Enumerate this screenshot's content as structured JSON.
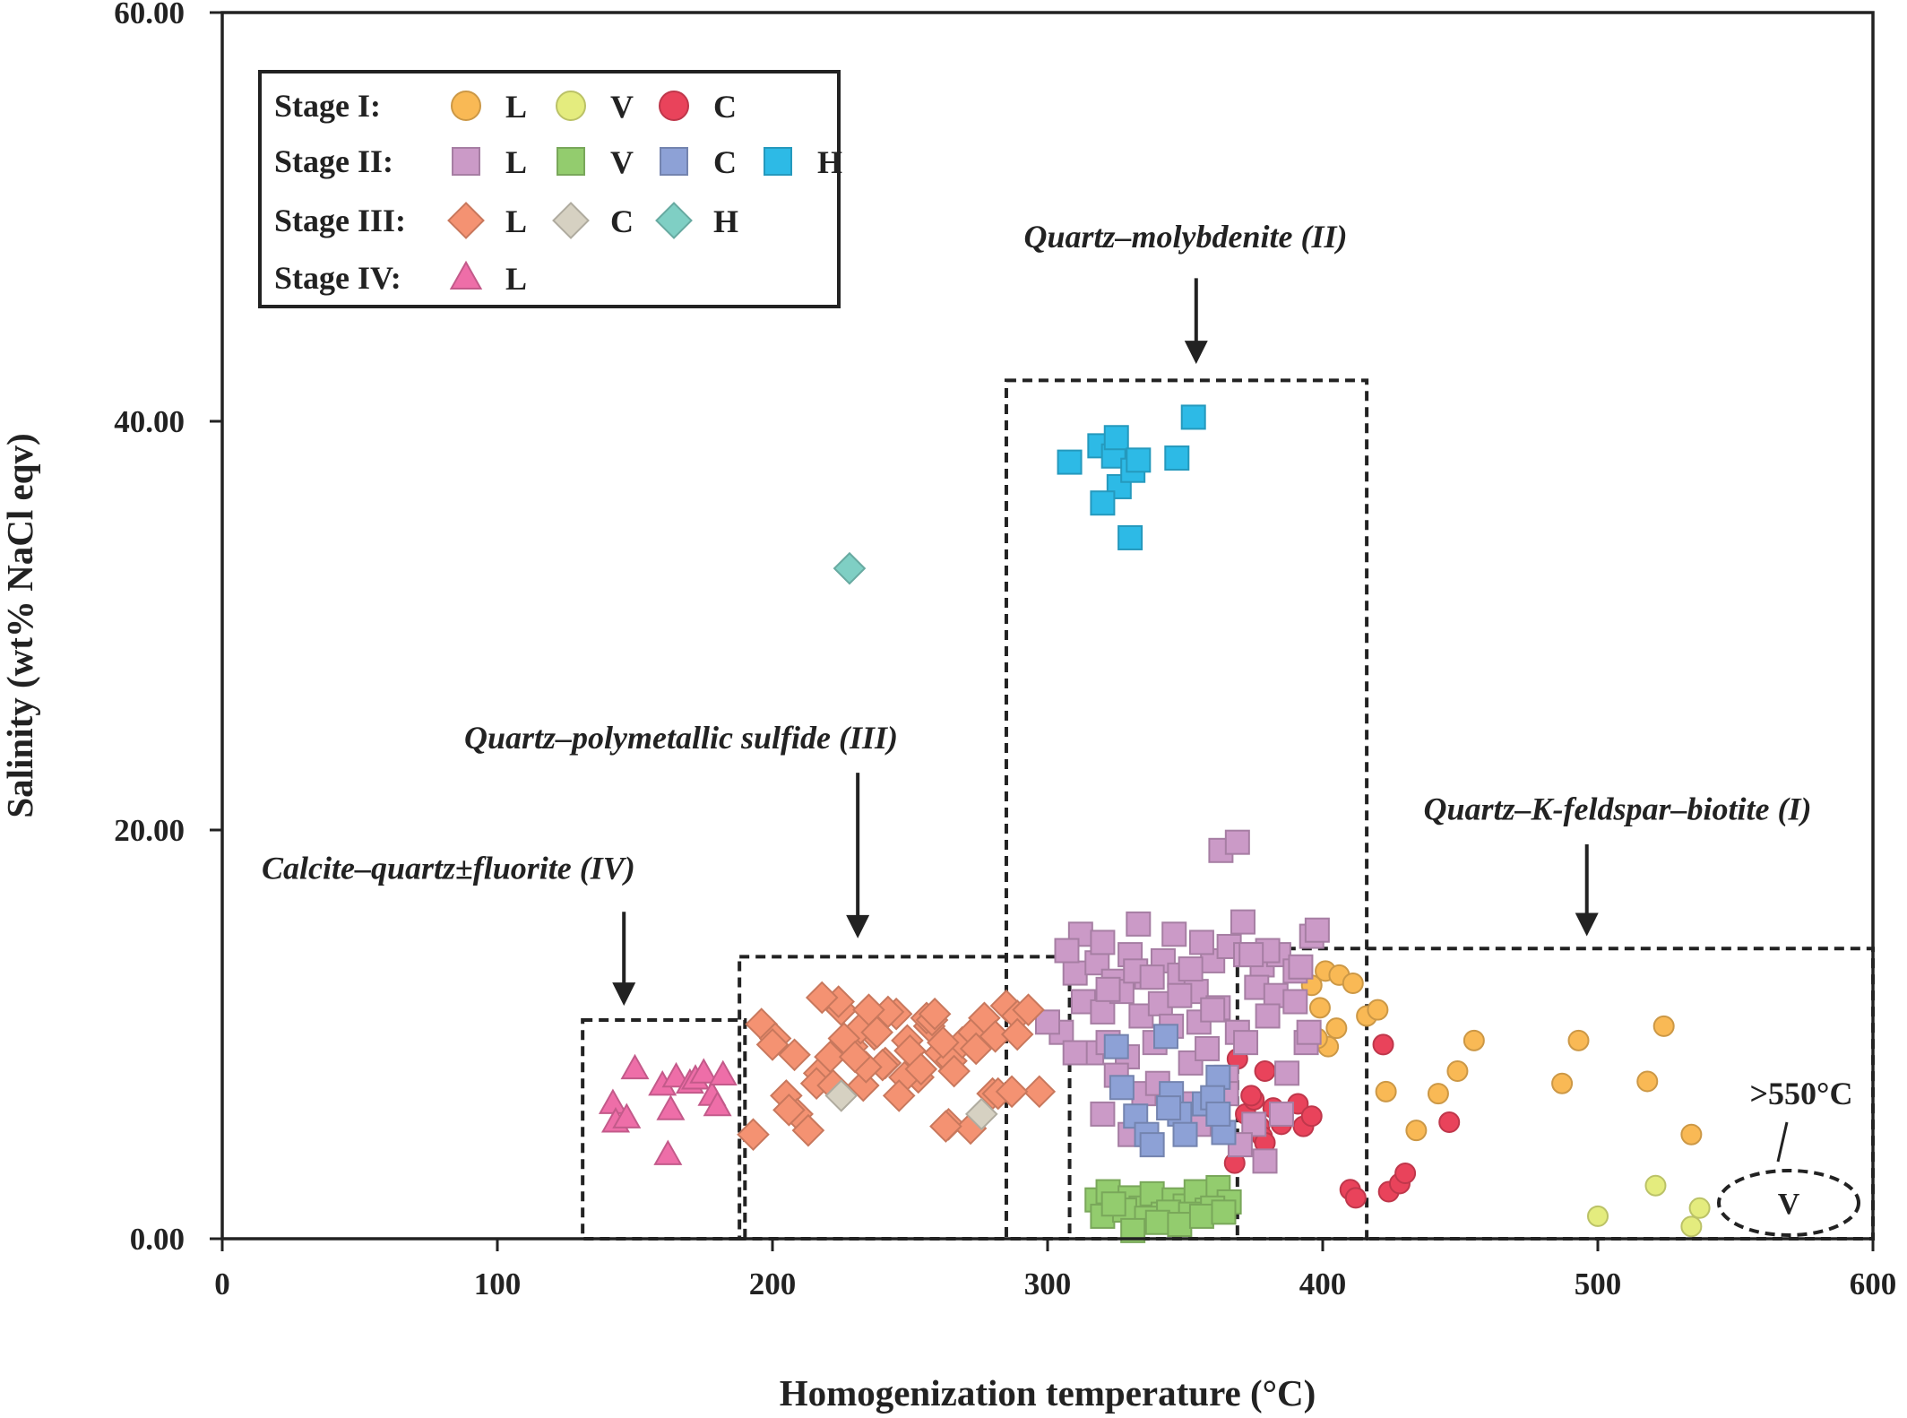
{
  "chart_data": {
    "type": "scatter",
    "xlabel": "Homogenization temperature (°C)",
    "ylabel": "Salinity (wt% NaCl eqv)",
    "xlim": [
      0,
      600
    ],
    "ylim": [
      0,
      60
    ],
    "x_ticks": [
      0,
      100,
      200,
      300,
      400,
      500,
      600
    ],
    "y_ticks": [
      0,
      20,
      40,
      60
    ],
    "x_tick_labels": [
      "0",
      "100",
      "200",
      "300",
      "400",
      "500",
      "600"
    ],
    "y_tick_labels": [
      "0.00",
      "20.00",
      "40.00",
      "60.00"
    ],
    "grid": false,
    "legend": {
      "placement": "top-left",
      "rows": [
        {
          "stage": "Stage I:",
          "items": [
            {
              "marker": "circle",
              "color": "#F9B955",
              "label": "L",
              "series": "s1L"
            },
            {
              "marker": "circle",
              "color": "#E4EC7E",
              "label": "V",
              "series": "s1V"
            },
            {
              "marker": "circle",
              "color": "#E9435B",
              "label": "C",
              "series": "s1C"
            }
          ]
        },
        {
          "stage": "Stage II:",
          "items": [
            {
              "marker": "square",
              "color": "#CB9AC7",
              "label": "L",
              "series": "s2L"
            },
            {
              "marker": "square",
              "color": "#93CC6E",
              "label": "V",
              "series": "s2V"
            },
            {
              "marker": "square",
              "color": "#8DA1D6",
              "label": "C",
              "series": "s2C"
            },
            {
              "marker": "square",
              "color": "#2DBAE6",
              "label": "H",
              "series": "s2H"
            }
          ]
        },
        {
          "stage": "Stage III:",
          "items": [
            {
              "marker": "diamond",
              "color": "#F49272",
              "label": "L",
              "series": "s3L"
            },
            {
              "marker": "diamond",
              "color": "#D6D1C2",
              "label": "C",
              "series": "s3C"
            },
            {
              "marker": "diamond",
              "color": "#7FCFC4",
              "label": "H",
              "series": "s3H"
            }
          ]
        },
        {
          "stage": "Stage IV:",
          "items": [
            {
              "marker": "triangle",
              "color": "#EE6EA8",
              "label": "L",
              "series": "s4L"
            }
          ]
        }
      ]
    },
    "regions": [
      {
        "label": "Calcite–quartz±fluorite (IV)",
        "x": [
          131,
          190
        ],
        "y": [
          0,
          10.7
        ]
      },
      {
        "label": "Quartz–polymetallic sulfide (III)",
        "x": [
          188,
          308
        ],
        "y": [
          0,
          13.8
        ]
      },
      {
        "label": "Quartz–molybdenite (II)",
        "x": [
          285,
          416
        ],
        "y": [
          0,
          42
        ]
      },
      {
        "label": "Quartz–K-feldspar–biotite (I)",
        "x": [
          369,
          600
        ],
        "y": [
          0,
          14.2
        ]
      }
    ],
    "annotations": [
      {
        "label": "Calcite–quartz±fluorite (IV)",
        "text_at": [
          180,
          17.6
        ],
        "arrow_from": [
          146,
          16
        ],
        "arrow_to": [
          146,
          11.4
        ]
      },
      {
        "label": "Quartz–polymetallic sulfide (III)",
        "text_at": [
          190,
          24
        ],
        "arrow_from": [
          231,
          22.8
        ],
        "arrow_to": [
          231,
          14.7
        ]
      },
      {
        "label": "Quartz–molybdenite (II)",
        "text_at": [
          354,
          48.5
        ],
        "arrow_from": [
          354,
          47
        ],
        "arrow_to": [
          354,
          42.8
        ]
      },
      {
        "label": "Quartz–K-feldspar–biotite (I)",
        "text_at": [
          496,
          20.5
        ],
        "arrow_from": [
          496,
          19.3
        ],
        "arrow_to": [
          496,
          14.8
        ]
      }
    ],
    "callout": {
      "label": ">550°C",
      "ellipse_label": "V",
      "center": [
        570,
        1.8
      ]
    },
    "series": [
      {
        "name": "Stage I L",
        "id": "s1L",
        "marker": "circle",
        "color": "#F9B955",
        "x": [
          396,
          401,
          406,
          411,
          416,
          420,
          399,
          402,
          405,
          398,
          423,
          434,
          442,
          449,
          455,
          487,
          493,
          518,
          524,
          534
        ],
        "y": [
          12.4,
          13.1,
          12.9,
          12.5,
          10.9,
          11.2,
          11.3,
          9.4,
          10.3,
          9.8,
          7.2,
          5.3,
          7.1,
          8.2,
          9.7,
          7.6,
          9.7,
          7.7,
          10.4,
          5.1
        ]
      },
      {
        "name": "Stage I V",
        "id": "s1V",
        "marker": "circle",
        "color": "#E4EC7E",
        "x": [
          500,
          521,
          534,
          537
        ],
        "y": [
          1.1,
          2.6,
          0.6,
          1.5
        ]
      },
      {
        "name": "Stage I C",
        "id": "s1C",
        "marker": "circle",
        "color": "#E9435B",
        "x": [
          372,
          375,
          377,
          379,
          382,
          385,
          368,
          374,
          378,
          391,
          393,
          396,
          369,
          379,
          422,
          410,
          412,
          424,
          428,
          430,
          446
        ],
        "y": [
          6.1,
          6.8,
          5.5,
          8.2,
          6.4,
          5.6,
          3.7,
          7.0,
          5.0,
          6.6,
          5.5,
          6.0,
          8.8,
          4.7,
          9.5,
          2.4,
          2.0,
          2.3,
          2.7,
          3.2,
          5.7
        ]
      },
      {
        "name": "Stage II L",
        "id": "s2L",
        "marker": "square",
        "color": "#CB9AC7",
        "x": [
          310,
          318,
          324,
          330,
          336,
          342,
          348,
          354,
          360,
          366,
          372,
          378,
          384,
          390,
          396,
          313,
          320,
          327,
          334,
          341,
          348,
          355,
          362,
          369,
          376,
          383,
          390,
          305,
          316,
          322,
          329,
          339,
          345,
          352,
          358,
          365,
          372,
          380,
          387,
          394,
          300,
          310,
          325,
          335,
          350,
          365,
          375,
          385,
          395,
          320,
          330,
          340,
          355,
          370,
          312,
          333,
          356,
          363,
          369,
          307,
          320,
          332,
          346,
          371,
          380,
          392,
          398,
          322,
          338,
          352,
          360,
          374,
          379
        ],
        "y": [
          13.0,
          13.5,
          12.6,
          13.9,
          12.8,
          13.6,
          12.9,
          12.1,
          13.6,
          14.3,
          13.9,
          13.4,
          13.9,
          13.1,
          14.8,
          11.6,
          11.1,
          12.1,
          10.9,
          11.5,
          11.9,
          10.6,
          11.3,
          10.1,
          12.3,
          11.9,
          11.6,
          10.1,
          9.1,
          9.6,
          8.9,
          9.6,
          10.4,
          8.6,
          9.3,
          7.9,
          9.6,
          10.9,
          8.1,
          9.6,
          10.6,
          9.1,
          8.0,
          7.1,
          6.6,
          7.1,
          5.6,
          6.1,
          10.1,
          6.1,
          5.1,
          7.6,
          5.6,
          4.6,
          14.9,
          15.4,
          14.5,
          19.0,
          19.4,
          14.1,
          14.5,
          13.1,
          14.9,
          15.5,
          14.1,
          13.3,
          15.1,
          12.2,
          12.8,
          13.2,
          11.2,
          13.9,
          3.8
        ]
      },
      {
        "name": "Stage II V",
        "id": "s2V",
        "marker": "square",
        "color": "#93CC6E",
        "x": [
          318,
          322,
          326,
          330,
          334,
          338,
          342,
          346,
          350,
          354,
          358,
          362,
          366,
          320,
          328,
          336,
          344,
          352,
          360,
          331,
          340,
          348,
          356,
          324,
          364
        ],
        "y": [
          1.9,
          2.3,
          1.6,
          2.0,
          1.5,
          2.2,
          1.2,
          1.9,
          1.6,
          2.3,
          1.4,
          2.5,
          1.8,
          1.1,
          1.4,
          1.0,
          1.3,
          1.2,
          1.5,
          0.4,
          0.8,
          0.7,
          1.1,
          1.7,
          1.3
        ],
        "note": "cluster of liquid-vapour inclusion points near 0-2 wt%"
      },
      {
        "name": "Stage II C",
        "id": "s2C",
        "marker": "square",
        "color": "#8DA1D6",
        "x": [
          325,
          327,
          332,
          336,
          338,
          343,
          345,
          348,
          350,
          344,
          357,
          362,
          360,
          364,
          362
        ],
        "y": [
          9.4,
          7.4,
          6.0,
          5.1,
          4.6,
          9.9,
          7.1,
          6.1,
          5.1,
          6.4,
          6.6,
          7.9,
          6.9,
          5.2,
          6.1
        ]
      },
      {
        "name": "Stage II H",
        "id": "s2H",
        "marker": "square",
        "color": "#2DBAE6",
        "x": [
          308,
          319,
          324,
          326,
          325,
          331,
          333,
          347,
          353,
          320,
          330
        ],
        "y": [
          38.0,
          38.8,
          38.3,
          36.8,
          39.2,
          37.6,
          38.1,
          38.2,
          40.2,
          36.0,
          34.3
        ]
      },
      {
        "name": "Stage III L",
        "id": "s3L",
        "marker": "diamond",
        "color": "#F49272",
        "x": [
          193,
          196,
          201,
          205,
          209,
          213,
          217,
          221,
          225,
          229,
          233,
          237,
          241,
          245,
          249,
          253,
          257,
          261,
          265,
          269,
          273,
          277,
          281,
          285,
          289,
          293,
          297,
          200,
          208,
          216,
          224,
          232,
          240,
          248,
          256,
          264,
          272,
          280,
          289,
          218,
          226,
          234,
          242,
          250,
          258,
          266,
          274,
          282,
          222,
          230,
          238,
          246,
          254,
          262,
          206,
          235,
          259,
          263,
          287
        ],
        "y": [
          5.1,
          10.5,
          9.8,
          7.0,
          6.1,
          5.3,
          8.1,
          8.9,
          11.2,
          9.4,
          7.5,
          10.0,
          8.6,
          11.0,
          9.7,
          7.9,
          10.4,
          9.1,
          8.7,
          9.6,
          10.1,
          10.8,
          9.9,
          11.4,
          10.9,
          11.2,
          7.2,
          9.5,
          9.0,
          7.6,
          11.6,
          10.3,
          8.5,
          7.9,
          10.8,
          5.6,
          5.4,
          7.1,
          10.0,
          11.8,
          9.8,
          8.4,
          11.1,
          9.2,
          10.7,
          8.2,
          9.3,
          7.1,
          7.5,
          8.9,
          10.1,
          7.0,
          8.3,
          9.6,
          6.3,
          11.2,
          11.0,
          5.5,
          7.2
        ]
      },
      {
        "name": "Stage III C",
        "id": "s3C",
        "marker": "diamond",
        "color": "#D6D1C2",
        "x": [
          225,
          276
        ],
        "y": [
          7.0,
          6.1
        ]
      },
      {
        "name": "Stage III H",
        "id": "s3H",
        "marker": "diamond",
        "color": "#7FCFC4",
        "x": [
          228
        ],
        "y": [
          32.8
        ]
      },
      {
        "name": "Stage IV L",
        "id": "s4L",
        "marker": "triangle",
        "color": "#EE6EA8",
        "x": [
          142,
          143,
          147,
          150,
          160,
          162,
          163,
          165,
          170,
          172,
          175,
          178,
          180,
          182
        ],
        "y": [
          6.6,
          5.7,
          5.9,
          8.3,
          7.5,
          4.1,
          6.3,
          7.9,
          7.6,
          7.8,
          8.1,
          7.0,
          6.5,
          8.0
        ]
      }
    ]
  }
}
